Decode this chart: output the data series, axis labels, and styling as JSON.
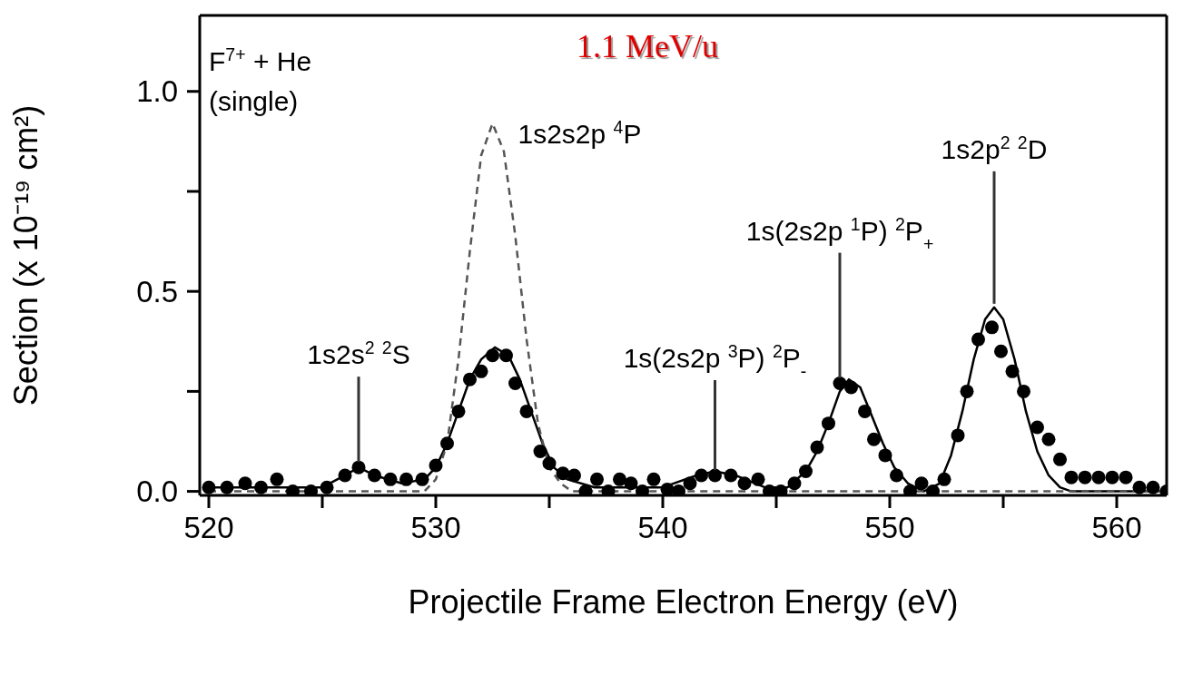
{
  "chart_data": {
    "type": "scatter",
    "title": "1.1 MeV/u",
    "xlabel": "Projectile Frame Electron Energy (eV)",
    "ylabel": "Section (x 10⁻¹⁹ cm²)",
    "xlim": [
      519.6,
      562.2
    ],
    "xticks": [
      520,
      {
        "value": 525,
        "label": null
      },
      530,
      {
        "value": 535,
        "label": null
      },
      540,
      {
        "value": 545,
        "label": null
      },
      550,
      {
        "value": 555,
        "label": null
      },
      560
    ],
    "ylim": [
      -0.01,
      1.19
    ],
    "yticks": [
      {
        "value": 0,
        "label": "0.0"
      },
      {
        "value": 0.25,
        "label": null
      },
      {
        "value": 0.5,
        "label": "0.5"
      },
      {
        "value": 0.75,
        "label": null
      },
      {
        "value": 1,
        "label": "1.0"
      }
    ],
    "grid": false,
    "series": [
      {
        "color": "#000000",
        "marker": "circle",
        "x": [
          520.0,
          520.8,
          521.6,
          522.3,
          523.0,
          523.7,
          524.5,
          525.2,
          526.0,
          526.6,
          527.3,
          528.0,
          528.7,
          529.4,
          530.0,
          530.5,
          531.0,
          531.5,
          532.0,
          532.5,
          533.1,
          533.5,
          534.0,
          534.6,
          535.0,
          535.6,
          536.1,
          536.6,
          537.1,
          537.6,
          538.1,
          538.6,
          539.1,
          539.6,
          540.2,
          540.7,
          541.2,
          541.7,
          542.3,
          543.0,
          543.6,
          544.2,
          544.7,
          545.2,
          545.8,
          546.3,
          546.8,
          547.3,
          547.8,
          548.3,
          548.9,
          549.3,
          549.8,
          550.3,
          550.9,
          551.4,
          551.9,
          552.4,
          553.0,
          553.4,
          553.9,
          554.5,
          554.9,
          555.4,
          555.9,
          556.5,
          557.0,
          557.5,
          558.0,
          558.6,
          559.2,
          559.8,
          560.4,
          561.0,
          561.6,
          562.2
        ],
        "values": [
          0.01,
          0.01,
          0.02,
          0.01,
          0.03,
          0.0,
          0.0,
          0.01,
          0.04,
          0.06,
          0.04,
          0.03,
          0.03,
          0.03,
          0.065,
          0.12,
          0.2,
          0.28,
          0.3,
          0.34,
          0.34,
          0.27,
          0.2,
          0.1,
          0.07,
          0.045,
          0.04,
          0.0,
          0.03,
          0.0,
          0.03,
          0.02,
          0.0,
          0.03,
          0.005,
          0.0,
          0.02,
          0.04,
          0.04,
          0.04,
          0.02,
          0.03,
          0.0,
          0.0,
          0.02,
          0.05,
          0.11,
          0.17,
          0.27,
          0.26,
          0.2,
          0.13,
          0.09,
          0.04,
          0.0,
          0.02,
          0.0,
          0.03,
          0.14,
          0.25,
          0.38,
          0.41,
          0.35,
          0.3,
          0.25,
          0.16,
          0.13,
          0.08,
          0.035,
          0.035,
          0.035,
          0.035,
          0.035,
          0.01,
          0.01,
          0.0
        ]
      },
      {
        "type": "line",
        "color": "#000000",
        "marker": "none",
        "line_style": "solid",
        "x": [
          520,
          525,
          526,
          526.6,
          527.3,
          528.5,
          529.5,
          530,
          530.5,
          531,
          531.5,
          532,
          532.6,
          533.2,
          533.7,
          534.2,
          534.7,
          535.2,
          535.8,
          537,
          540,
          541.5,
          542.3,
          543.2,
          544.5,
          545.5,
          546.3,
          546.8,
          547.3,
          547.8,
          548.2,
          548.7,
          549.2,
          549.7,
          550.2,
          550.8,
          551.5,
          552.2,
          552.7,
          553.2,
          553.7,
          554.2,
          554.6,
          555.0,
          555.5,
          556.0,
          556.5,
          557.0,
          557.5,
          558,
          562
        ],
        "values": [
          0.01,
          0.01,
          0.04,
          0.06,
          0.04,
          0.02,
          0.03,
          0.06,
          0.12,
          0.2,
          0.28,
          0.33,
          0.36,
          0.34,
          0.28,
          0.2,
          0.12,
          0.06,
          0.03,
          0.01,
          0.01,
          0.04,
          0.05,
          0.04,
          0.01,
          0.01,
          0.05,
          0.1,
          0.17,
          0.25,
          0.28,
          0.26,
          0.19,
          0.12,
          0.06,
          0.02,
          0.0,
          0.02,
          0.09,
          0.2,
          0.33,
          0.43,
          0.46,
          0.43,
          0.33,
          0.2,
          0.1,
          0.04,
          0.01,
          0.0,
          0.0
        ]
      },
      {
        "type": "line",
        "color": "#555555",
        "marker": "none",
        "line_style": "dashed",
        "x": [
          520,
          529.5,
          530,
          530.5,
          531,
          531.5,
          532,
          532.5,
          533,
          533.5,
          534,
          534.5,
          535,
          535.5,
          536,
          562
        ],
        "values": [
          0.0,
          0.0,
          0.03,
          0.12,
          0.33,
          0.6,
          0.84,
          0.92,
          0.85,
          0.64,
          0.38,
          0.17,
          0.06,
          0.02,
          0.0,
          0.0
        ]
      }
    ],
    "annotations": [
      "F$^{7+}$ + He",
      "(single)",
      {
        "text": "1s2s$^{2}$ $^{2}$S",
        "x": 526.6,
        "y": 0.06
      },
      {
        "text": "1s2s2p $^{4}$P",
        "x": 532.5,
        "y": 0.92
      },
      {
        "text": "1s(2s2p $^{3}$P) $^{2}$P$_{-}$",
        "x": 542.3,
        "y": 0.04
      },
      {
        "text": "1s(2s2p $^{1}$P) $^{2}$P$_{+}$",
        "x": 547.8,
        "y": 0.27
      },
      {
        "text": "1s2p$^{2}$ $^{2}$D",
        "x": 554.6,
        "y": 0.46
      }
    ]
  }
}
